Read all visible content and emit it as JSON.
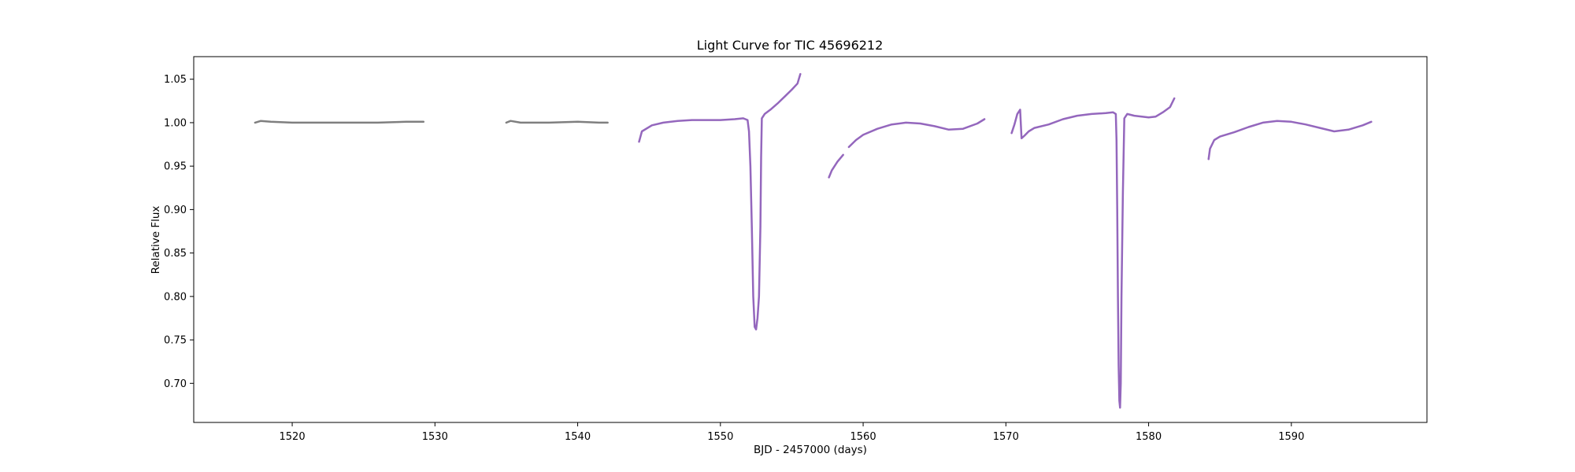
{
  "chart_data": {
    "type": "scatter",
    "title": "Light Curve for TIC 45696212",
    "xlabel": "BJD - 2457000 (days)",
    "ylabel": "Relative Flux",
    "xlim": [
      1513.1,
      1599.5
    ],
    "ylim": [
      0.655,
      1.076
    ],
    "x_ticks": [
      1520,
      1530,
      1540,
      1550,
      1560,
      1570,
      1580,
      1590
    ],
    "y_ticks": [
      0.7,
      0.75,
      0.8,
      0.85,
      0.9,
      0.95,
      1.0,
      1.05
    ],
    "grid": false,
    "series": [
      {
        "color": "#7f7f7f",
        "segments": [
          [
            [
              1517.4,
              1.0
            ],
            [
              1517.8,
              1.002
            ],
            [
              1518.5,
              1.001
            ],
            [
              1520,
              1.0
            ],
            [
              1522,
              1.0
            ],
            [
              1524,
              1.0
            ],
            [
              1526,
              1.0
            ],
            [
              1528,
              1.001
            ],
            [
              1529.2,
              1.001
            ]
          ],
          [
            [
              1535.0,
              1.0
            ],
            [
              1535.3,
              1.002
            ],
            [
              1536,
              1.0
            ],
            [
              1538,
              1.0
            ],
            [
              1540,
              1.001
            ],
            [
              1541.5,
              1.0
            ],
            [
              1542.1,
              1.0
            ]
          ]
        ]
      },
      {
        "color": "#9467bd",
        "segments": [
          [
            [
              1544.3,
              0.978
            ],
            [
              1544.5,
              0.99
            ],
            [
              1545.2,
              0.997
            ],
            [
              1546,
              1.0
            ],
            [
              1547,
              1.002
            ],
            [
              1548,
              1.003
            ],
            [
              1549,
              1.003
            ],
            [
              1550,
              1.003
            ],
            [
              1551,
              1.004
            ],
            [
              1551.6,
              1.005
            ],
            [
              1551.9,
              1.003
            ],
            [
              1552.0,
              0.99
            ],
            [
              1552.1,
              0.95
            ],
            [
              1552.2,
              0.88
            ],
            [
              1552.3,
              0.8
            ],
            [
              1552.4,
              0.765
            ],
            [
              1552.5,
              0.762
            ],
            [
              1552.6,
              0.775
            ],
            [
              1552.7,
              0.8
            ],
            [
              1552.8,
              0.88
            ],
            [
              1552.85,
              0.96
            ],
            [
              1552.9,
              1.005
            ],
            [
              1553.1,
              1.01
            ],
            [
              1553.5,
              1.015
            ],
            [
              1554,
              1.022
            ],
            [
              1554.5,
              1.03
            ],
            [
              1555,
              1.038
            ],
            [
              1555.4,
              1.045
            ],
            [
              1555.6,
              1.056
            ]
          ],
          [
            [
              1557.6,
              0.937
            ],
            [
              1557.8,
              0.945
            ],
            [
              1558.2,
              0.955
            ],
            [
              1558.6,
              0.963
            ]
          ],
          [
            [
              1559.0,
              0.972
            ],
            [
              1559.5,
              0.98
            ],
            [
              1560,
              0.986
            ],
            [
              1561,
              0.993
            ],
            [
              1562,
              0.998
            ],
            [
              1563,
              1.0
            ],
            [
              1564,
              0.999
            ],
            [
              1565,
              0.996
            ],
            [
              1566,
              0.992
            ],
            [
              1567,
              0.993
            ],
            [
              1568,
              0.999
            ],
            [
              1568.5,
              1.004
            ]
          ],
          [
            [
              1570.4,
              0.988
            ],
            [
              1570.6,
              0.998
            ],
            [
              1570.8,
              1.01
            ],
            [
              1571.0,
              1.015
            ],
            [
              1571.1,
              0.982
            ],
            [
              1571.3,
              0.985
            ],
            [
              1571.6,
              0.99
            ],
            [
              1572,
              0.994
            ],
            [
              1573,
              0.998
            ],
            [
              1574,
              1.004
            ],
            [
              1575,
              1.008
            ],
            [
              1576,
              1.01
            ],
            [
              1577,
              1.011
            ],
            [
              1577.5,
              1.012
            ],
            [
              1577.7,
              1.01
            ],
            [
              1577.75,
              0.98
            ],
            [
              1577.8,
              0.9
            ],
            [
              1577.85,
              0.8
            ],
            [
              1577.9,
              0.72
            ],
            [
              1577.95,
              0.68
            ],
            [
              1578.0,
              0.672
            ],
            [
              1578.05,
              0.7
            ],
            [
              1578.1,
              0.8
            ],
            [
              1578.2,
              0.92
            ],
            [
              1578.3,
              1.005
            ],
            [
              1578.5,
              1.01
            ],
            [
              1579,
              1.008
            ],
            [
              1580,
              1.006
            ],
            [
              1580.5,
              1.007
            ],
            [
              1581,
              1.012
            ],
            [
              1581.5,
              1.018
            ],
            [
              1581.8,
              1.028
            ]
          ],
          [
            [
              1584.2,
              0.958
            ],
            [
              1584.3,
              0.97
            ],
            [
              1584.6,
              0.98
            ],
            [
              1585,
              0.984
            ],
            [
              1586,
              0.989
            ],
            [
              1587,
              0.995
            ],
            [
              1588,
              1.0
            ],
            [
              1589,
              1.002
            ],
            [
              1590,
              1.001
            ],
            [
              1591,
              0.998
            ],
            [
              1592,
              0.994
            ],
            [
              1593,
              0.99
            ],
            [
              1594,
              0.992
            ],
            [
              1595,
              0.997
            ],
            [
              1595.6,
              1.001
            ]
          ]
        ]
      }
    ]
  }
}
